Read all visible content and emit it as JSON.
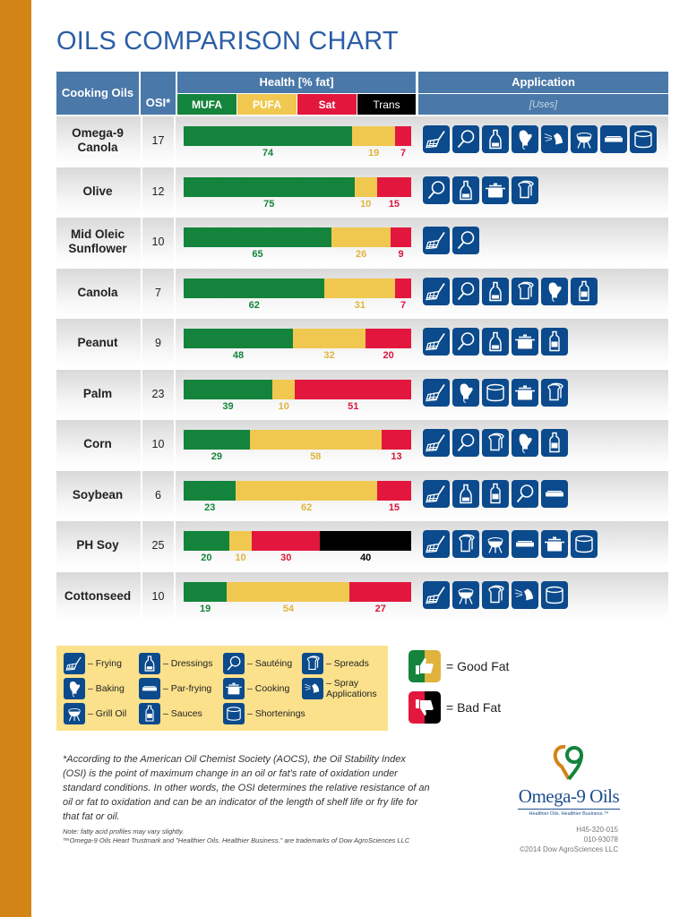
{
  "title": "OILS COMPARISON CHART",
  "header": {
    "oils": "Cooking Oils",
    "osi": "OSI*",
    "health": "Health [% fat]",
    "application": "Application",
    "uses": "[Uses]",
    "mufa": "MUFA",
    "pufa": "PUFA",
    "sat": "Sat",
    "trans": "Trans"
  },
  "colors": {
    "mufa": "#14843c",
    "pufa": "#f0c850",
    "sat": "#e3173e",
    "trans": "#000000",
    "header": "#4a78a9",
    "icon_bg": "#0b4a8c",
    "strip": "#d28516",
    "legend_bg": "#fbe18c"
  },
  "chart_data": {
    "type": "bar",
    "orientation": "horizontal",
    "stacked": true,
    "xlim": [
      0,
      100
    ],
    "categories": [
      "Omega-9 Canola",
      "Olive",
      "Mid Oleic Sunflower",
      "Canola",
      "Peanut",
      "Palm",
      "Corn",
      "Soybean",
      "PH Soy",
      "Cottonseed"
    ],
    "osi": [
      17,
      12,
      10,
      7,
      9,
      23,
      10,
      6,
      25,
      10
    ],
    "series": [
      {
        "name": "MUFA",
        "values": [
          74,
          75,
          65,
          62,
          48,
          39,
          29,
          23,
          20,
          19
        ]
      },
      {
        "name": "PUFA",
        "values": [
          19,
          10,
          26,
          31,
          32,
          10,
          58,
          62,
          10,
          54
        ]
      },
      {
        "name": "Sat",
        "values": [
          7,
          15,
          9,
          7,
          20,
          51,
          13,
          15,
          30,
          27
        ]
      },
      {
        "name": "Trans",
        "values": [
          0,
          0,
          0,
          0,
          0,
          0,
          0,
          0,
          40,
          0
        ]
      }
    ],
    "uses": [
      [
        "frying",
        "sauteing",
        "dressings",
        "baking",
        "spray",
        "grill",
        "par-frying",
        "shortenings"
      ],
      [
        "sauteing",
        "dressings",
        "cooking",
        "spreads"
      ],
      [
        "frying",
        "sauteing"
      ],
      [
        "frying",
        "sauteing",
        "dressings",
        "spreads",
        "baking",
        "sauces"
      ],
      [
        "frying",
        "sauteing",
        "dressings",
        "cooking",
        "sauces"
      ],
      [
        "frying",
        "baking",
        "shortenings",
        "cooking",
        "spreads"
      ],
      [
        "frying",
        "sauteing",
        "spreads",
        "baking",
        "sauces"
      ],
      [
        "frying",
        "dressings",
        "sauces",
        "sauteing",
        "par-frying"
      ],
      [
        "frying",
        "spreads",
        "grill",
        "par-frying",
        "cooking",
        "shortenings"
      ],
      [
        "frying",
        "grill",
        "spreads",
        "spray",
        "shortenings"
      ]
    ]
  },
  "legend": [
    {
      "icon": "frying",
      "label": "– Frying"
    },
    {
      "icon": "dressings",
      "label": "– Dressings"
    },
    {
      "icon": "sauteing",
      "label": "– Sautéing"
    },
    {
      "icon": "spreads",
      "label": "– Spreads"
    },
    {
      "icon": "baking",
      "label": "– Baking"
    },
    {
      "icon": "par-frying",
      "label": "– Par-frying"
    },
    {
      "icon": "cooking",
      "label": "– Cooking"
    },
    {
      "icon": "spray",
      "label": "– Spray Applications"
    },
    {
      "icon": "grill",
      "label": "– Grill Oil"
    },
    {
      "icon": "sauces",
      "label": "– Sauces"
    },
    {
      "icon": "shortenings",
      "label": "– Shortenings"
    }
  ],
  "fat_legend": {
    "good": "= Good Fat",
    "bad": "= Bad Fat"
  },
  "footnote": "*According to the American Oil Chemist Society (AOCS), the Oil Stability Index (OSI) is the point of maximum change in an oil or fat's rate of oxidation under standard conditions. In other words, the OSI determines the relative resistance of an oil or fat to oxidation and can be an indicator of the length of shelf life or fry life for that fat or oil.",
  "note1": "Note: fatty acid profiles may vary slightly.",
  "note2": "™Omega-9 Oils Heart Trustmark and \"Healthier Oils. Healthier Business.\" are trademarks of Dow AgroSciences LLC",
  "logo": {
    "name": "Omega-9 Oils",
    "tagline": "Healthier Oils. Healthier Business.™"
  },
  "codes": [
    "H45-320-015",
    "010-93078",
    "©2014 Dow AgroSciences LLC"
  ]
}
